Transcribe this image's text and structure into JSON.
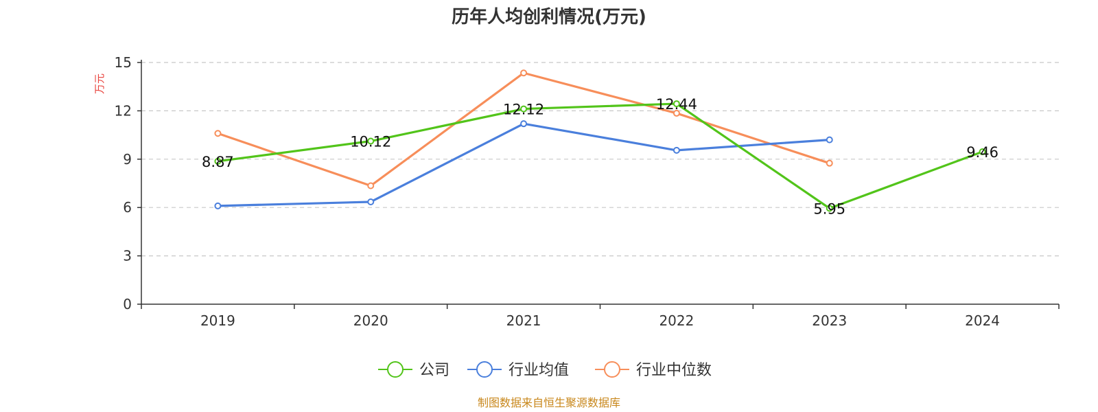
{
  "chart_data": {
    "type": "line",
    "title": "历年人均创利情况(万元)",
    "ylabel": "万元",
    "xlabel": "",
    "categories": [
      "2019",
      "2020",
      "2021",
      "2022",
      "2023",
      "2024"
    ],
    "ylim": [
      0,
      15
    ],
    "yticks": [
      "0",
      "3",
      "6",
      "9",
      "12",
      "15"
    ],
    "grid": true,
    "legend_position": "bottom-center",
    "series": [
      {
        "name": "公司",
        "color": "#52c41a",
        "values": [
          8.87,
          10.12,
          12.12,
          12.44,
          5.95,
          9.46
        ],
        "labels": [
          "8.87",
          "10.12",
          "12.12",
          "12.44",
          "5.95",
          "9.46"
        ]
      },
      {
        "name": "行业均值",
        "color": "#4a7fdc",
        "values": [
          6.1,
          6.35,
          11.2,
          9.55,
          10.2,
          null
        ]
      },
      {
        "name": "行业中位数",
        "color": "#f78e5a",
        "values": [
          10.6,
          7.35,
          14.35,
          11.85,
          8.75,
          null
        ]
      }
    ],
    "source": "制图数据来自恒生聚源数据库"
  }
}
